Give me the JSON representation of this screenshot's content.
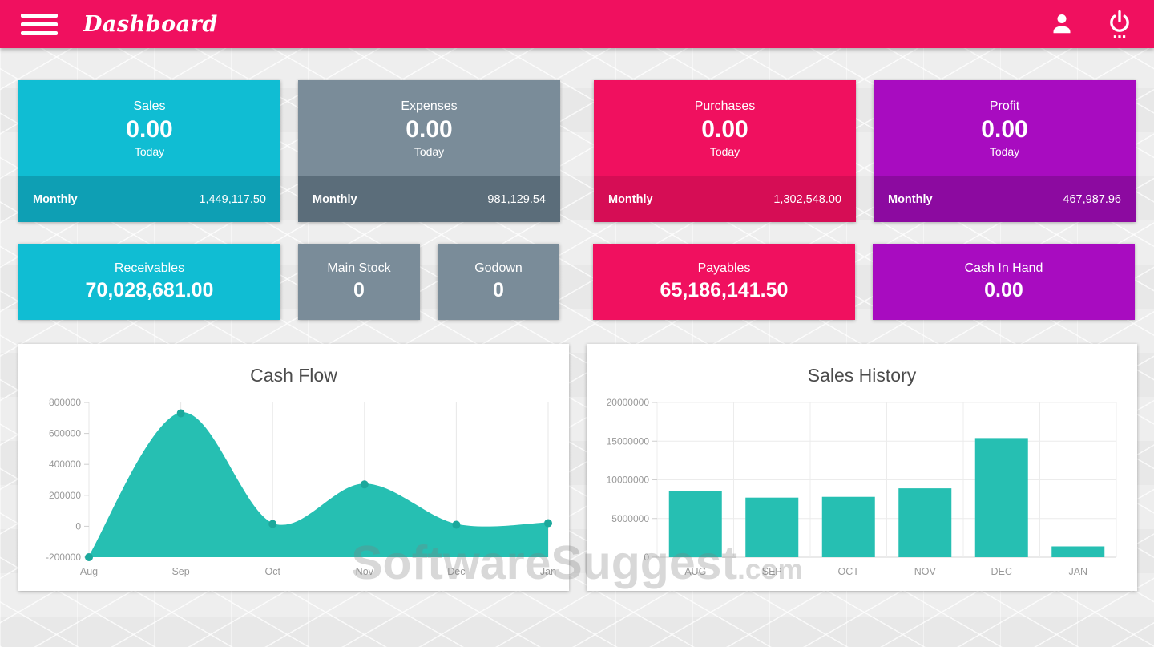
{
  "header": {
    "title": "Dashboard",
    "bg_color": "#f0105f",
    "icons": {
      "menu": "hamburger-menu",
      "user": "user-silhouette",
      "power": "power-button"
    }
  },
  "stat_cards": [
    {
      "title": "Sales",
      "value": "0.00",
      "period": "Today",
      "footer_label": "Monthly",
      "footer_value": "1,449,117.50",
      "color": "#10bdd3",
      "footer_color": "#0e9fb4"
    },
    {
      "title": "Expenses",
      "value": "0.00",
      "period": "Today",
      "footer_label": "Monthly",
      "footer_value": "981,129.54",
      "color": "#7a8c99",
      "footer_color": "#5b6d7a"
    },
    {
      "title": "Purchases",
      "value": "0.00",
      "period": "Today",
      "footer_label": "Monthly",
      "footer_value": "1,302,548.00",
      "color": "#f0105f",
      "footer_color": "#d60d55"
    },
    {
      "title": "Profit",
      "value": "0.00",
      "period": "Today",
      "footer_label": "Monthly",
      "footer_value": "467,987.96",
      "color": "#a80cc0",
      "footer_color": "#8c0aa0"
    }
  ],
  "summary_cards": [
    {
      "title": "Receivables",
      "value": "70,028,681.00",
      "color": "#10bdd3"
    },
    {
      "title": "Main Stock",
      "value": "0",
      "color": "#7a8c99"
    },
    {
      "title": "Godown",
      "value": "0",
      "color": "#7a8c99"
    },
    {
      "title": "Payables",
      "value": "65,186,141.50",
      "color": "#f0105f"
    },
    {
      "title": "Cash In Hand",
      "value": "0.00",
      "color": "#a80cc0"
    }
  ],
  "watermark": {
    "text": "SoftwareSuggest",
    "suffix": ".com"
  },
  "chart_data": [
    {
      "type": "area",
      "title": "Cash Flow",
      "x": [
        "Aug",
        "Sep",
        "Oct",
        "Nov",
        "Dec",
        "Jan"
      ],
      "values": [
        -200000,
        730000,
        15000,
        270000,
        10000,
        20000
      ],
      "ylim": [
        -200000,
        800000
      ],
      "yticks": [
        -200000,
        0,
        200000,
        400000,
        600000,
        800000
      ],
      "xlabel": "",
      "ylabel": "",
      "grid": "vertical",
      "legend": "none",
      "area_color": "#26bfb2",
      "marker_color": "#1ca89c",
      "axis_text_color": "#999999"
    },
    {
      "type": "bar",
      "title": "Sales History",
      "categories": [
        "AUG",
        "SEP",
        "OCT",
        "NOV",
        "DEC",
        "JAN"
      ],
      "values": [
        8600000,
        7700000,
        7800000,
        8900000,
        15400000,
        1400000
      ],
      "ylim": [
        0,
        20000000
      ],
      "yticks": [
        0,
        5000000,
        10000000,
        15000000,
        20000000
      ],
      "xlabel": "",
      "ylabel": "",
      "grid": "both",
      "legend": "none",
      "bar_color": "#26bfb2",
      "axis_text_color": "#999999"
    }
  ]
}
